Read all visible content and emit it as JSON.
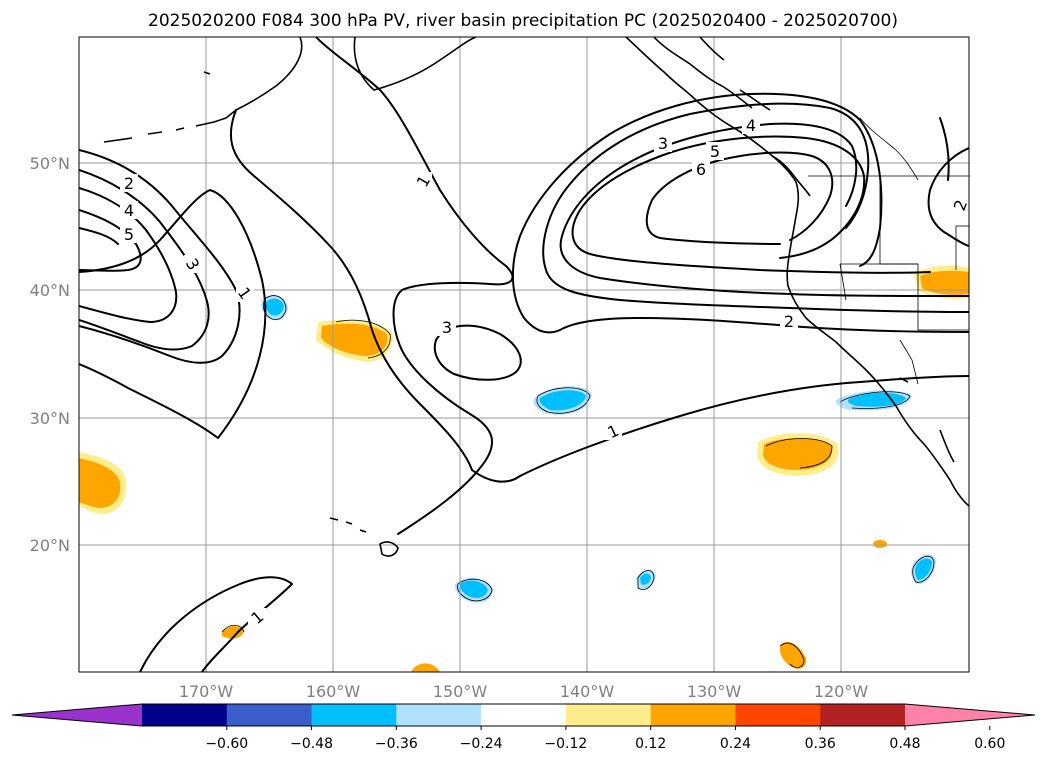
{
  "title": "2025020200 F084 300 hPa PV, river basin precipitation PC (2025020400 - 2025020700)",
  "lon_ticks": [
    "170°W",
    "160°W",
    "150°W",
    "140°W",
    "130°W",
    "120°W"
  ],
  "lat_ticks": [
    "50°N",
    "40°N",
    "30°N",
    "20°N"
  ],
  "contour_labels": {
    "c1a": "1",
    "c1b": "1",
    "c1c": "1",
    "c1d": "1",
    "c2a": "2",
    "c2b": "2",
    "c2c": "2",
    "c3a": "3",
    "c3b": "3",
    "c3c": "3",
    "c4a": "4",
    "c4b": "4",
    "c5a": "5",
    "c5b": "5",
    "c6a": "6"
  },
  "colorbar": {
    "ticks": [
      "−0.60",
      "−0.48",
      "−0.36",
      "−0.24",
      "−0.12",
      "0.12",
      "0.24",
      "0.36",
      "0.48",
      "0.60"
    ],
    "colors": [
      "#9933cc",
      "#00008b",
      "#3a5fcd",
      "#00bfff",
      "#b0e2ff",
      "#ffffff",
      "#ffec8b",
      "#ffa500",
      "#ff4500",
      "#b22222",
      "#ff82ab"
    ]
  }
}
